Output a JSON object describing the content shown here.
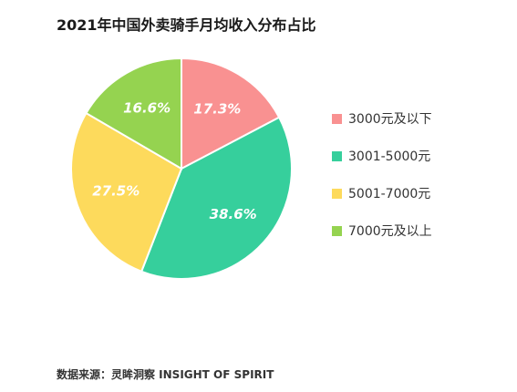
{
  "chart_data": {
    "type": "pie",
    "title": "2021年中国外卖骑手月均收入分布占比",
    "slices": [
      {
        "label": "3000元及以下",
        "value": 17.3,
        "display": "17.3%",
        "color": "#F99191"
      },
      {
        "label": "3001-5000元",
        "value": 38.6,
        "display": "38.6%",
        "color": "#36CF9C"
      },
      {
        "label": "5001-7000元",
        "value": 27.5,
        "display": "27.5%",
        "color": "#FDDA5C"
      },
      {
        "label": "7000元及以上",
        "value": 16.6,
        "display": "16.6%",
        "color": "#95D350"
      }
    ],
    "legend_position": "right",
    "start_angle": "top, clockwise"
  },
  "source": "数据来源：灵眸洞察 INSIGHT OF SPIRIT"
}
